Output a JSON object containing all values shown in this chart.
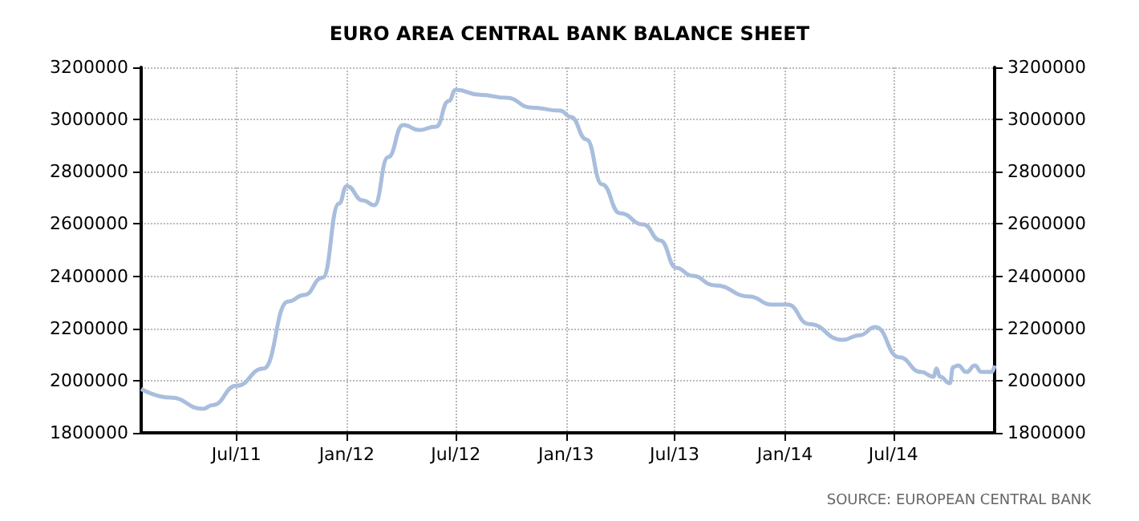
{
  "chart_data": {
    "type": "line",
    "title": "EURO AREA CENTRAL BANK BALANCE SHEET",
    "x": [
      "2011-01-23",
      "2011-03-13",
      "2011-05-06",
      "2011-05-22",
      "2011-07-01",
      "2011-08-15",
      "2011-09-25",
      "2011-10-22",
      "2011-11-22",
      "2011-12-19",
      "2012-01-01",
      "2012-01-28",
      "2012-02-16",
      "2012-03-10",
      "2012-04-04",
      "2012-05-01",
      "2012-05-29",
      "2012-06-19",
      "2012-07-01",
      "2012-08-10",
      "2012-09-24",
      "2012-11-04",
      "2012-12-22",
      "2013-01-09",
      "2013-02-04",
      "2013-03-02",
      "2013-04-01",
      "2013-05-10",
      "2013-06-07",
      "2013-07-04",
      "2013-07-30",
      "2013-09-06",
      "2013-11-03",
      "2013-12-10",
      "2014-01-06",
      "2014-02-10",
      "2014-04-07",
      "2014-05-06",
      "2014-06-01",
      "2014-07-11",
      "2014-08-16",
      "2014-09-06",
      "2014-09-11",
      "2014-09-17",
      "2014-10-03",
      "2014-10-09",
      "2014-10-17",
      "2014-10-31",
      "2014-11-14",
      "2014-11-25",
      "2014-12-12",
      "2014-12-17"
    ],
    "series": [
      {
        "color": "#a9bedd",
        "values": [
          1968000,
          1935000,
          1892000,
          1906000,
          1980000,
          2046000,
          2303000,
          2328000,
          2395000,
          2678000,
          2745000,
          2690000,
          2672000,
          2856000,
          2979000,
          2960000,
          2973000,
          3071000,
          3114000,
          3095000,
          3083000,
          3046000,
          3034000,
          3010000,
          2924000,
          2752000,
          2641000,
          2598000,
          2537000,
          2432000,
          2402000,
          2365000,
          2322000,
          2291000,
          2291000,
          2217000,
          2156000,
          2174000,
          2205000,
          2089000,
          2033000,
          2015000,
          2046000,
          2015000,
          1990000,
          2052000,
          2058000,
          2033000,
          2058000,
          2033000,
          2033000,
          2058000
        ]
      }
    ],
    "xlim": [
      "2011-01-23",
      "2014-12-17"
    ],
    "xticks": [
      {
        "value": "2011-07-01",
        "label": "Jul/11"
      },
      {
        "value": "2012-01-01",
        "label": "Jan/12"
      },
      {
        "value": "2012-07-01",
        "label": "Jul/12"
      },
      {
        "value": "2013-01-01",
        "label": "Jan/13"
      },
      {
        "value": "2013-07-01",
        "label": "Jul/13"
      },
      {
        "value": "2014-01-01",
        "label": "Jan/14"
      },
      {
        "value": "2014-07-01",
        "label": "Jul/14"
      }
    ],
    "ylim": [
      1800000,
      3200000
    ],
    "yticks": [
      1800000,
      2000000,
      2200000,
      2400000,
      2600000,
      2800000,
      3000000,
      3200000
    ],
    "y2lim": [
      1800000,
      3200000
    ],
    "y2ticks": [
      1800000,
      2000000,
      2200000,
      2400000,
      2600000,
      2800000,
      3000000,
      3200000
    ],
    "grid": true,
    "marker": "none",
    "line_style": "solid",
    "annotations": [
      "SOURCE: EUROPEAN CENTRAL BANK"
    ]
  }
}
